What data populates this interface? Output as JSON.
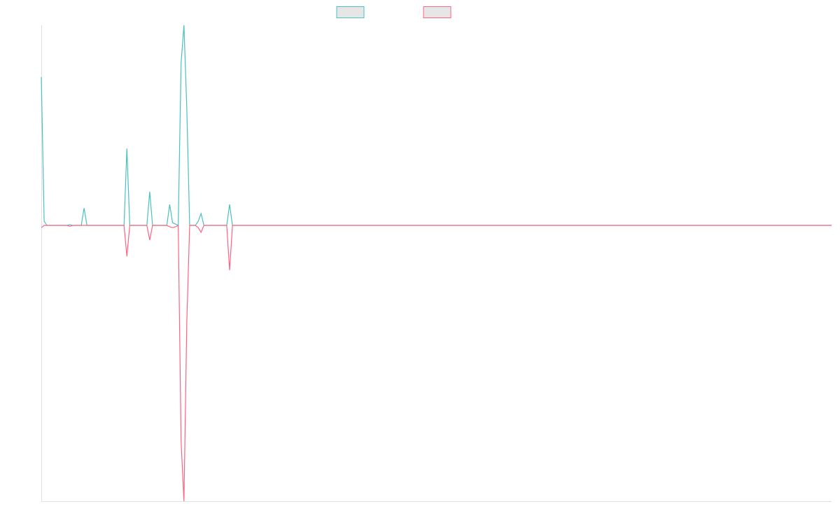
{
  "chart_data": {
    "type": "line",
    "x": [
      0,
      1,
      2,
      9,
      10,
      11,
      14,
      15,
      16,
      29,
      30,
      31,
      37,
      38,
      39,
      44,
      45,
      46,
      47,
      48,
      49,
      50,
      51,
      52,
      54,
      55,
      56,
      57,
      65,
      66,
      67,
      277
    ],
    "xlim": [
      0,
      277
    ],
    "ylim": [
      -100,
      72.6
    ],
    "series": [
      {
        "color": "#4bc0c0",
        "values": [
          53.8,
          1.5,
          0,
          0,
          0.3,
          0,
          0,
          6.3,
          0,
          0,
          27.9,
          0,
          0,
          12.2,
          0,
          0,
          7.6,
          1,
          0.5,
          0,
          58.9,
          72.6,
          42.4,
          0,
          0,
          1.5,
          4.3,
          0,
          0,
          7.6,
          0,
          0
        ]
      },
      {
        "color": "#ff6384",
        "values": [
          -0.8,
          0,
          0,
          0,
          -0.3,
          0,
          0,
          0,
          0,
          0,
          -11.2,
          0,
          0,
          -5.3,
          0,
          0,
          -0.5,
          -0.8,
          -0.5,
          0,
          -78.2,
          -100,
          -35,
          0,
          0,
          -0.8,
          -2.5,
          0,
          0,
          -16.2,
          0,
          0
        ]
      }
    ]
  }
}
